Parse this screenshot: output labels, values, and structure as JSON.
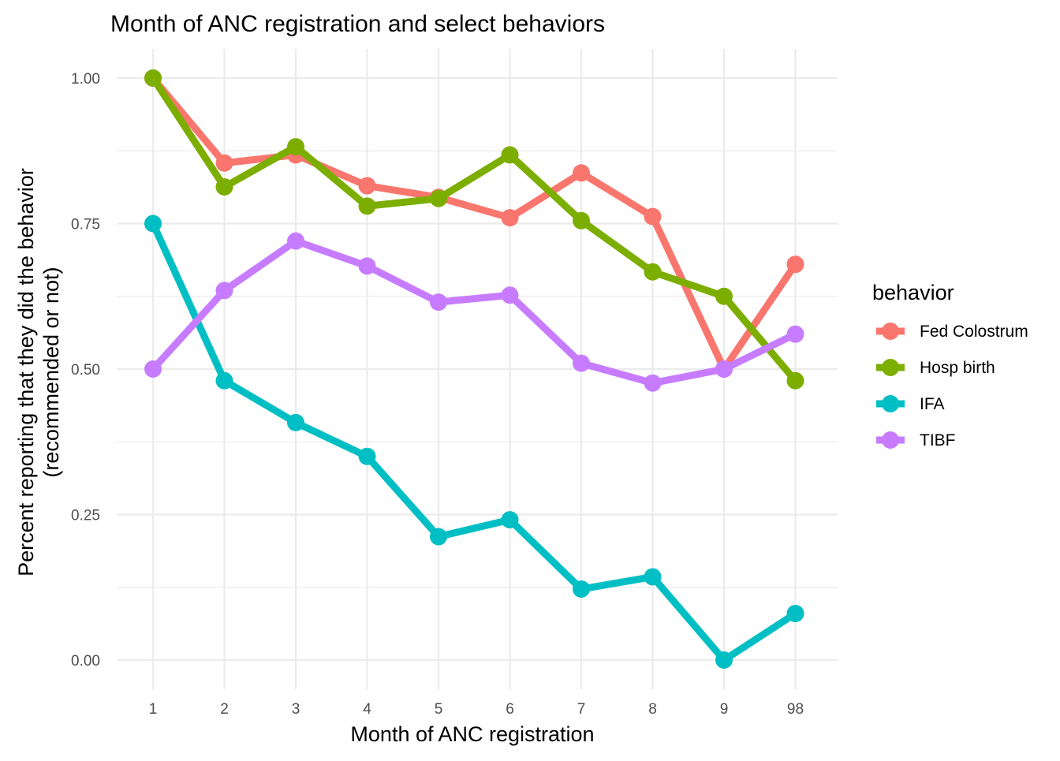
{
  "chart_data": {
    "type": "line",
    "title": "Month of ANC registration and select behaviors",
    "xlabel": "Month of ANC registration",
    "ylabel_line1": "Percent reporting that they did the behavior",
    "ylabel_line2": "(recommended or not)",
    "categories": [
      "1",
      "2",
      "3",
      "4",
      "5",
      "6",
      "7",
      "8",
      "9",
      "98"
    ],
    "y_ticks": [
      0,
      0.25,
      0.5,
      0.75,
      1.0
    ],
    "y_tick_labels": [
      "0.00",
      "0.25",
      "0.50",
      "0.75",
      "1.00"
    ],
    "ylim": [
      -0.05,
      1.05
    ],
    "grid": true,
    "legend_title": "behavior",
    "legend_position": "right",
    "series": [
      {
        "name": "Fed Colostrum",
        "color": "#F8766D",
        "values": [
          1.0,
          0.854,
          0.868,
          0.815,
          0.795,
          0.76,
          0.837,
          0.762,
          0.5,
          0.68
        ]
      },
      {
        "name": "Hosp birth",
        "color": "#7CAE00",
        "values": [
          1.0,
          0.813,
          0.882,
          0.78,
          0.793,
          0.868,
          0.755,
          0.667,
          0.625,
          0.48
        ]
      },
      {
        "name": "IFA",
        "color": "#00BFC4",
        "values": [
          0.75,
          0.48,
          0.408,
          0.35,
          0.212,
          0.241,
          0.122,
          0.143,
          0.0,
          0.08
        ]
      },
      {
        "name": "TIBF",
        "color": "#C77CFF",
        "values": [
          0.5,
          0.635,
          0.72,
          0.677,
          0.615,
          0.627,
          0.51,
          0.476,
          0.5,
          0.56
        ]
      }
    ]
  }
}
